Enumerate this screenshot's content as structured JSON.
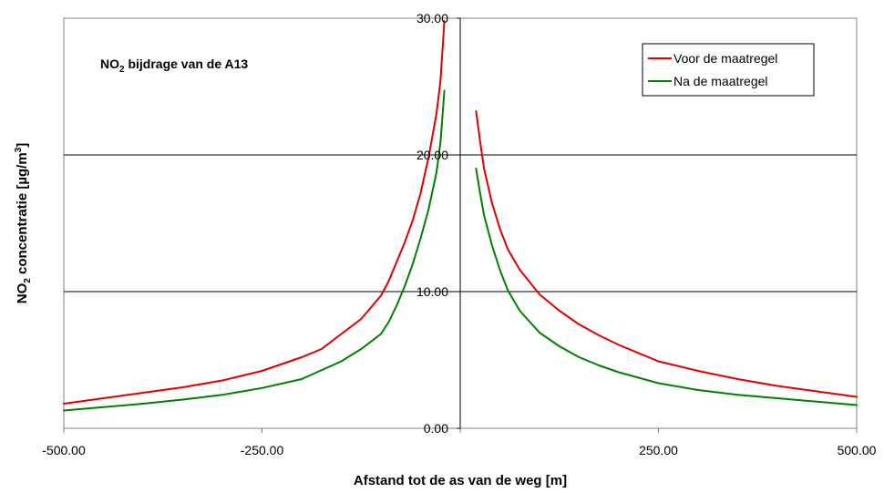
{
  "chart_data": {
    "type": "line",
    "title": "",
    "annotation": {
      "prefix": "NO",
      "subscript": "2",
      "suffix": " bijdrage van de A13"
    },
    "xlabel": "Afstand tot de as van de weg  [m]",
    "ylabel": {
      "prefix": "NO",
      "subscript": "2",
      "middle": " concentratie [µg/m",
      "superscript": "3",
      "suffix": "]"
    },
    "xlim": [
      -500,
      500
    ],
    "ylim": [
      0,
      30
    ],
    "x_ticks": [
      -500,
      -250,
      0,
      250,
      500
    ],
    "x_tick_labels": [
      "-500.00",
      "-250.00",
      "",
      "250.00",
      "500.00"
    ],
    "y_ticks": [
      0,
      10,
      20,
      30
    ],
    "y_tick_labels": [
      "0.00",
      "10.00",
      "20.00",
      "30.00"
    ],
    "grid": "horizontal",
    "legend_position": "top-right",
    "series": [
      {
        "name": "Voor de maatregel",
        "color": "#e00000",
        "segments": [
          [
            [
              -500,
              1.8
            ],
            [
              -450,
              2.2
            ],
            [
              -400,
              2.6
            ],
            [
              -350,
              3.0
            ],
            [
              -300,
              3.5
            ],
            [
              -250,
              4.2
            ],
            [
              -200,
              5.2
            ],
            [
              -175,
              5.8
            ],
            [
              -150,
              6.9
            ],
            [
              -125,
              8.0
            ],
            [
              -100,
              9.7
            ],
            [
              -90,
              10.8
            ],
            [
              -80,
              12.2
            ],
            [
              -70,
              13.6
            ],
            [
              -60,
              15.2
            ],
            [
              -50,
              17.2
            ],
            [
              -40,
              19.8
            ],
            [
              -30,
              23.0
            ],
            [
              -25,
              25.4
            ],
            [
              -20,
              29.8
            ]
          ],
          [
            [
              20,
              23.2
            ],
            [
              25,
              21.0
            ],
            [
              30,
              19.0
            ],
            [
              40,
              16.5
            ],
            [
              50,
              14.6
            ],
            [
              60,
              13.1
            ],
            [
              75,
              11.6
            ],
            [
              100,
              9.8
            ],
            [
              125,
              8.6
            ],
            [
              150,
              7.6
            ],
            [
              175,
              6.8
            ],
            [
              200,
              6.1
            ],
            [
              250,
              4.9
            ],
            [
              300,
              4.2
            ],
            [
              350,
              3.6
            ],
            [
              400,
              3.1
            ],
            [
              450,
              2.7
            ],
            [
              500,
              2.3
            ]
          ]
        ]
      },
      {
        "name": "Na de maatregel",
        "color": "#008000",
        "segments": [
          [
            [
              -500,
              1.3
            ],
            [
              -450,
              1.55
            ],
            [
              -400,
              1.8
            ],
            [
              -350,
              2.1
            ],
            [
              -300,
              2.45
            ],
            [
              -250,
              2.95
            ],
            [
              -200,
              3.6
            ],
            [
              -150,
              4.9
            ],
            [
              -125,
              5.8
            ],
            [
              -100,
              6.9
            ],
            [
              -90,
              7.8
            ],
            [
              -80,
              9.0
            ],
            [
              -70,
              10.4
            ],
            [
              -60,
              12.0
            ],
            [
              -50,
              13.9
            ],
            [
              -40,
              16.0
            ],
            [
              -30,
              18.7
            ],
            [
              -25,
              20.9
            ],
            [
              -20,
              24.7
            ]
          ],
          [
            [
              20,
              19.0
            ],
            [
              25,
              17.2
            ],
            [
              30,
              15.6
            ],
            [
              40,
              13.4
            ],
            [
              50,
              11.6
            ],
            [
              60,
              10.1
            ],
            [
              75,
              8.6
            ],
            [
              100,
              7.0
            ],
            [
              125,
              6.0
            ],
            [
              150,
              5.2
            ],
            [
              175,
              4.6
            ],
            [
              200,
              4.1
            ],
            [
              250,
              3.3
            ],
            [
              300,
              2.8
            ],
            [
              350,
              2.45
            ],
            [
              400,
              2.2
            ],
            [
              450,
              1.95
            ],
            [
              500,
              1.7
            ]
          ]
        ]
      }
    ]
  }
}
